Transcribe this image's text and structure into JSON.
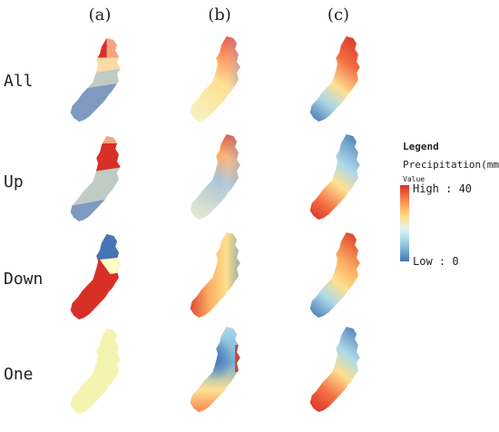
{
  "columns": [
    "(a)",
    "(b)",
    "(c)"
  ],
  "rows": [
    "All",
    "Up",
    "Down",
    "One"
  ],
  "legend": {
    "title": "Legend",
    "field": "Precipitation(mm)",
    "value_label": "Value",
    "high_label": "High : 40",
    "low_label": "Low : 0",
    "ramp_colors": [
      "#d73027",
      "#f46d43",
      "#fdae61",
      "#fee090",
      "#e0f3f8",
      "#abd9e9",
      "#74add1",
      "#4575b4"
    ]
  },
  "panel_colors": {
    "red": "#d73027",
    "orange": "#f4a582",
    "pale_yellow": "#f5f3b0",
    "grey_green": "#c0cbc3",
    "steel_blue": "#7e9ac0",
    "blue": "#4575b4"
  }
}
